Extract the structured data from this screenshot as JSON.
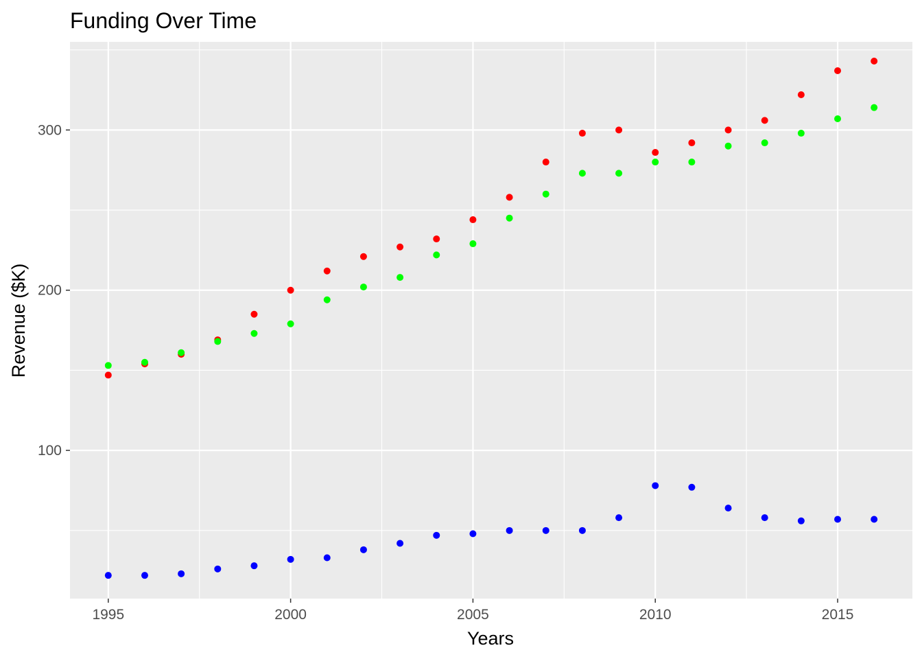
{
  "chart_data": {
    "type": "scatter",
    "title": "Funding Over Time",
    "xlabel": "Years",
    "ylabel": "Revenue ($K)",
    "xlim": [
      1993.95,
      2017.05
    ],
    "ylim": [
      7.5,
      355
    ],
    "x_ticks": [
      1995,
      2000,
      2005,
      2010,
      2015
    ],
    "y_ticks": [
      100,
      200,
      300
    ],
    "x_minor": [
      1997.5,
      2002.5,
      2007.5,
      2012.5
    ],
    "y_minor": [
      50,
      150,
      250,
      350
    ],
    "grid": true,
    "legend": "none",
    "background": "#ebebeb",
    "series": [
      {
        "color": "#ff0000",
        "x": [
          1995,
          1996,
          1997,
          1998,
          1999,
          2000,
          2001,
          2002,
          2003,
          2004,
          2005,
          2006,
          2007,
          2008,
          2009,
          2010,
          2011,
          2012,
          2013,
          2014,
          2015,
          2016
        ],
        "values": [
          147,
          154,
          160,
          169,
          185,
          200,
          212,
          221,
          227,
          232,
          244,
          258,
          280,
          298,
          300,
          286,
          292,
          300,
          306,
          322,
          337,
          343
        ]
      },
      {
        "color": "#00ff00",
        "x": [
          1995,
          1996,
          1997,
          1998,
          1999,
          2000,
          2001,
          2002,
          2003,
          2004,
          2005,
          2006,
          2007,
          2008,
          2009,
          2010,
          2011,
          2012,
          2013,
          2014,
          2015,
          2016
        ],
        "values": [
          153,
          155,
          161,
          168,
          173,
          179,
          194,
          202,
          208,
          222,
          229,
          245,
          260,
          273,
          273,
          280,
          280,
          290,
          292,
          298,
          307,
          314
        ]
      },
      {
        "color": "#0000ff",
        "x": [
          1995,
          1996,
          1997,
          1998,
          1999,
          2000,
          2001,
          2002,
          2003,
          2004,
          2005,
          2006,
          2007,
          2008,
          2009,
          2010,
          2011,
          2012,
          2013,
          2014,
          2015,
          2016
        ],
        "values": [
          22,
          22,
          23,
          26,
          28,
          32,
          33,
          38,
          42,
          47,
          48,
          50,
          50,
          50,
          58,
          78,
          77,
          64,
          58,
          56,
          57,
          57
        ]
      }
    ]
  }
}
